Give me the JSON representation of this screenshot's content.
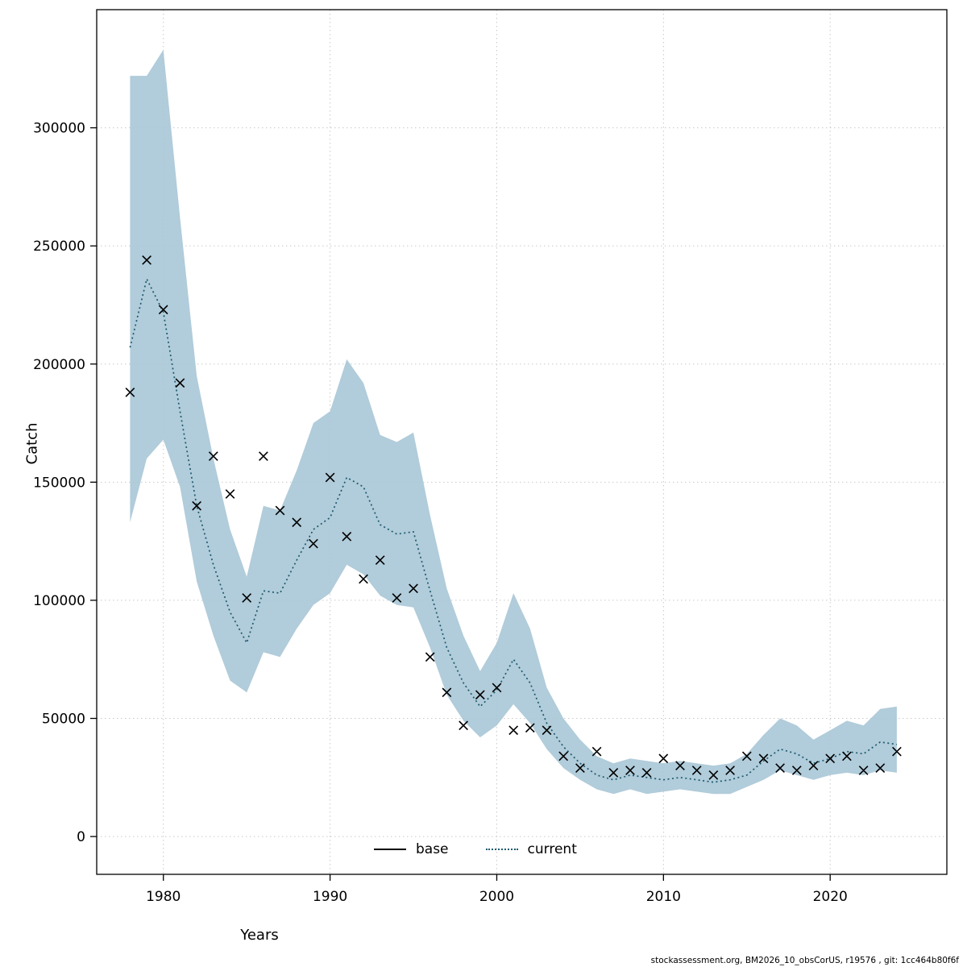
{
  "legend": {
    "items": [
      {
        "label": "base",
        "style": "solid",
        "color": "#000000"
      },
      {
        "label": "current",
        "style": "dotted",
        "color": "#1c5a6e"
      }
    ],
    "position": "bottom-center-inside"
  },
  "footer": {
    "text": "stockassessment.org, BM2026_10_obsCorUS, r19576 , git: 1cc464b80f6f"
  },
  "chart_data": {
    "type": "line",
    "title": "",
    "xlabel": "Years",
    "ylabel": "Catch",
    "grid": true,
    "xlim": [
      1976,
      2027
    ],
    "ylim": [
      -16000,
      350000
    ],
    "xticks": [
      1980,
      1990,
      2000,
      2010,
      2020
    ],
    "yticks": [
      0,
      50000,
      100000,
      150000,
      200000,
      250000,
      300000
    ],
    "x": [
      1978,
      1979,
      1980,
      1981,
      1982,
      1983,
      1984,
      1985,
      1986,
      1987,
      1988,
      1989,
      1990,
      1991,
      1992,
      1993,
      1994,
      1995,
      1996,
      1997,
      1998,
      1999,
      2000,
      2001,
      2002,
      2003,
      2004,
      2005,
      2006,
      2007,
      2008,
      2009,
      2010,
      2011,
      2012,
      2013,
      2014,
      2015,
      2016,
      2017,
      2018,
      2019,
      2020,
      2021,
      2022,
      2023,
      2024
    ],
    "series": [
      {
        "name": "observed catch",
        "marker": "x",
        "color": "#000000",
        "values": [
          188000,
          244000,
          223000,
          192000,
          140000,
          161000,
          145000,
          101000,
          161000,
          138000,
          133000,
          124000,
          152000,
          127000,
          109000,
          117000,
          101000,
          105000,
          76000,
          61000,
          47000,
          60000,
          63000,
          45000,
          46000,
          45000,
          34000,
          29000,
          36000,
          27000,
          28000,
          27000,
          33000,
          30000,
          28000,
          26000,
          28000,
          34000,
          33000,
          29000,
          28000,
          30000,
          33000,
          34000,
          28000,
          29000,
          36000
        ]
      },
      {
        "name": "current",
        "line": "dotted",
        "color": "#1c5a6e",
        "values": [
          207000,
          236000,
          222000,
          180000,
          140000,
          115000,
          95000,
          82000,
          104000,
          103000,
          117000,
          130000,
          135000,
          152000,
          148000,
          132000,
          128000,
          129000,
          104000,
          80000,
          65000,
          55000,
          62000,
          75000,
          65000,
          48000,
          38000,
          31000,
          26000,
          24000,
          26000,
          25000,
          24000,
          25000,
          24000,
          23000,
          24000,
          26000,
          32000,
          37000,
          35000,
          31000,
          33000,
          36000,
          35000,
          40000,
          39000
        ]
      }
    ],
    "band": {
      "name": "current confidence interval",
      "fill": "#a9c7d6",
      "upper": [
        322000,
        322000,
        333000,
        262000,
        195000,
        160000,
        130000,
        110000,
        140000,
        138000,
        155000,
        175000,
        180000,
        202000,
        192000,
        170000,
        167000,
        171000,
        136000,
        105000,
        85000,
        70000,
        82000,
        103000,
        88000,
        63000,
        50000,
        41000,
        34000,
        31000,
        33000,
        32000,
        31000,
        32000,
        31000,
        30000,
        31000,
        35000,
        43000,
        50000,
        47000,
        41000,
        45000,
        49000,
        47000,
        54000,
        55000
      ],
      "lower": [
        133000,
        160000,
        168000,
        148000,
        108000,
        85000,
        66000,
        61000,
        78000,
        76000,
        88000,
        98000,
        103000,
        115000,
        111000,
        102000,
        98000,
        97000,
        80000,
        60000,
        49000,
        42000,
        47000,
        56000,
        48000,
        37000,
        29000,
        24000,
        20000,
        18000,
        20000,
        18000,
        19000,
        20000,
        19000,
        18000,
        18000,
        21000,
        24000,
        28000,
        26000,
        24000,
        26000,
        27000,
        26000,
        28000,
        27000
      ]
    }
  }
}
